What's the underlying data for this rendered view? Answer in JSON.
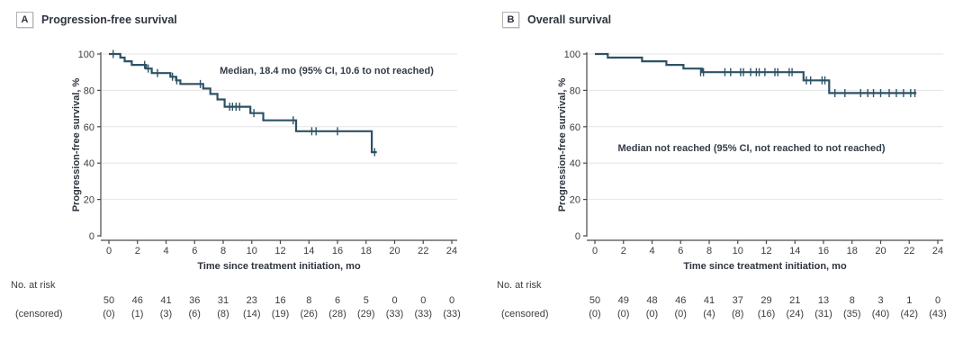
{
  "page": {
    "background": "#ffffff"
  },
  "chart_data": [
    {
      "type": "line",
      "subtype": "kaplan-meier-step",
      "panel_label": "A",
      "title": "Progression-free survival",
      "annotation": "Median, 18.4 mo (95% CI, 10.6 to not reached)",
      "xlabel": "Time since treatment initiation, mo",
      "ylabel": "Progression-free survival, %",
      "xlim": [
        0,
        24
      ],
      "ylim": [
        0,
        100
      ],
      "xticks": [
        0,
        2,
        4,
        6,
        8,
        10,
        12,
        14,
        16,
        18,
        20,
        22,
        24
      ],
      "yticks": [
        0,
        20,
        40,
        60,
        80,
        100
      ],
      "grid": "horizontal",
      "line_color": "#2d5266",
      "steps": [
        [
          0,
          100
        ],
        [
          0.8,
          98
        ],
        [
          1.1,
          96
        ],
        [
          1.6,
          94
        ],
        [
          2.6,
          92
        ],
        [
          3.0,
          89.5
        ],
        [
          4.3,
          87.5
        ],
        [
          4.7,
          85.5
        ],
        [
          5.0,
          83.5
        ],
        [
          6.6,
          81
        ],
        [
          7.1,
          78
        ],
        [
          7.6,
          75
        ],
        [
          8.1,
          71
        ],
        [
          9.9,
          67.5
        ],
        [
          10.8,
          63.5
        ],
        [
          13.1,
          57.5
        ],
        [
          18.4,
          46
        ]
      ],
      "curve_end": 18.75,
      "censor_marks": [
        [
          0.3,
          100
        ],
        [
          2.5,
          94
        ],
        [
          2.75,
          92
        ],
        [
          3.4,
          89.5
        ],
        [
          4.45,
          87.5
        ],
        [
          4.75,
          85.5
        ],
        [
          6.4,
          83.5
        ],
        [
          8.45,
          71
        ],
        [
          8.65,
          71
        ],
        [
          8.9,
          71
        ],
        [
          9.15,
          71
        ],
        [
          10.15,
          67.5
        ],
        [
          12.9,
          63.5
        ],
        [
          14.2,
          57.5
        ],
        [
          14.5,
          57.5
        ],
        [
          16.0,
          57.5
        ],
        [
          18.6,
          46
        ]
      ],
      "risk_table": {
        "row1_label": "No. at risk",
        "row2_label": "(censored)",
        "times": [
          0,
          2,
          4,
          6,
          8,
          10,
          12,
          14,
          16,
          18,
          20,
          22,
          24
        ],
        "at_risk": [
          "50",
          "46",
          "41",
          "36",
          "31",
          "23",
          "16",
          "8",
          "6",
          "5",
          "0",
          "0",
          "0"
        ],
        "censored": [
          "(0)",
          "(1)",
          "(3)",
          "(6)",
          "(8)",
          "(14)",
          "(19)",
          "(26)",
          "(28)",
          "(29)",
          "(33)",
          "(33)",
          "(33)"
        ]
      }
    },
    {
      "type": "line",
      "subtype": "kaplan-meier-step",
      "panel_label": "B",
      "title": "Overall survival",
      "annotation": "Median not reached (95% CI, not reached to not reached)",
      "xlabel": "Time since treatment initiation, mo",
      "ylabel": "Progression-free survival, %",
      "xlim": [
        0,
        24
      ],
      "ylim": [
        0,
        100
      ],
      "xticks": [
        0,
        2,
        4,
        6,
        8,
        10,
        12,
        14,
        16,
        18,
        20,
        22,
        24
      ],
      "yticks": [
        0,
        20,
        40,
        60,
        80,
        100
      ],
      "grid": "horizontal",
      "line_color": "#2d5266",
      "steps": [
        [
          0,
          100
        ],
        [
          0.9,
          98
        ],
        [
          3.3,
          96
        ],
        [
          5.0,
          94
        ],
        [
          6.2,
          92
        ],
        [
          7.5,
          90
        ],
        [
          14.6,
          85.5
        ],
        [
          16.4,
          78.5
        ]
      ],
      "curve_end": 22.5,
      "censor_marks": [
        [
          7.4,
          90
        ],
        [
          7.6,
          90
        ],
        [
          9.1,
          90
        ],
        [
          9.5,
          90
        ],
        [
          10.2,
          90
        ],
        [
          10.4,
          90
        ],
        [
          10.9,
          90
        ],
        [
          11.3,
          90
        ],
        [
          11.5,
          90
        ],
        [
          11.9,
          90
        ],
        [
          12.6,
          90
        ],
        [
          12.8,
          90
        ],
        [
          13.6,
          90
        ],
        [
          13.8,
          90
        ],
        [
          14.8,
          85.5
        ],
        [
          15.1,
          85.5
        ],
        [
          15.9,
          85.5
        ],
        [
          16.1,
          85.5
        ],
        [
          16.8,
          78.5
        ],
        [
          17.5,
          78.5
        ],
        [
          18.6,
          78.5
        ],
        [
          19.1,
          78.5
        ],
        [
          19.5,
          78.5
        ],
        [
          20.0,
          78.5
        ],
        [
          20.6,
          78.5
        ],
        [
          21.1,
          78.5
        ],
        [
          21.6,
          78.5
        ],
        [
          22.1,
          78.5
        ],
        [
          22.4,
          78.5
        ]
      ],
      "risk_table": {
        "row1_label": "No. at risk",
        "row2_label": "(censored)",
        "times": [
          0,
          2,
          4,
          6,
          8,
          10,
          12,
          14,
          16,
          18,
          20,
          22,
          24
        ],
        "at_risk": [
          "50",
          "49",
          "48",
          "46",
          "41",
          "37",
          "29",
          "21",
          "13",
          "8",
          "3",
          "1",
          "0"
        ],
        "censored": [
          "(0)",
          "(0)",
          "(0)",
          "(0)",
          "(4)",
          "(8)",
          "(16)",
          "(24)",
          "(31)",
          "(35)",
          "(40)",
          "(42)",
          "(43)"
        ]
      }
    }
  ]
}
